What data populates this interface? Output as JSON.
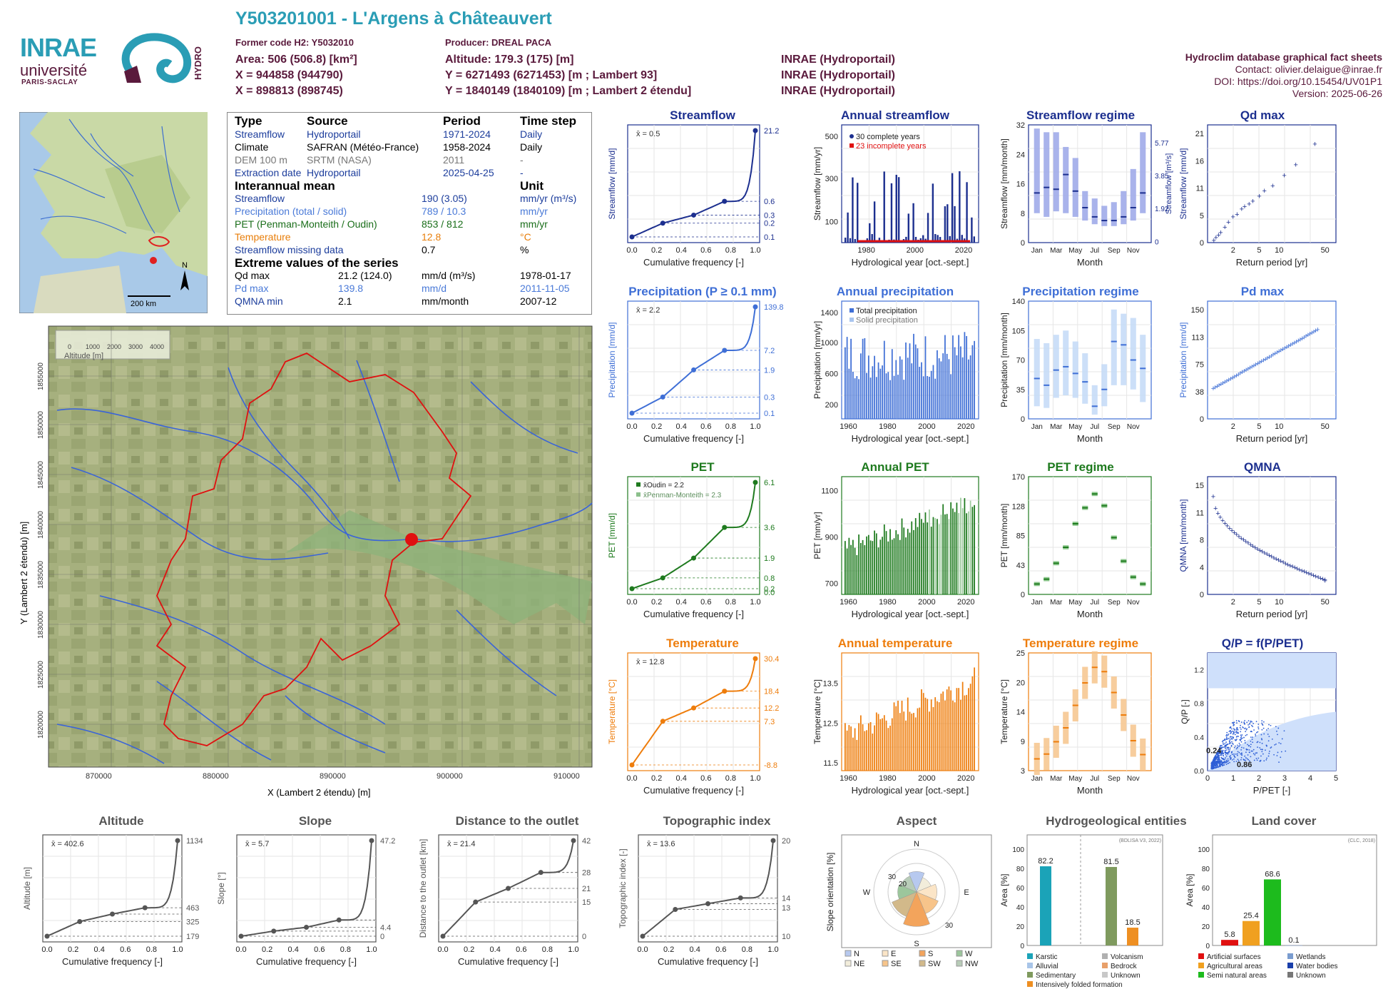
{
  "header": {
    "title": "Y503201001 - L'Argens à Châteauvert",
    "former_code": "Former code H2: Y5032010",
    "producer": "Producer: DREAL PACA",
    "area": "Area: 506 (506.8) [km²]",
    "altitude": "Altitude: 179.3 (175) [m]",
    "x93": "X = 944858 (944790)",
    "y93": "Y = 6271493 (6271453) [m ; Lambert 93]",
    "x2e": "X = 898813 (898745)",
    "y2e": "Y = 1840149 (1840109) [m ; Lambert 2 étendu]",
    "src1": "INRAE (Hydroportail)",
    "src2": "INRAE (Hydroportail)",
    "src3": "INRAE (Hydroportail)",
    "db_title": "Hydroclim database graphical fact sheets",
    "contact": "Contact: olivier.delaigue@inrae.fr",
    "doi": "DOI: https://doi.org/10.15454/UV01P1",
    "version": "Version: 2025-06-26"
  },
  "logos": {
    "inrae": "INRAE",
    "universite": "université",
    "paris_saclay": "PARIS-SACLAY",
    "hydro": "HYDRO"
  },
  "info": {
    "h_type": "Type",
    "h_source": "Source",
    "h_period": "Period",
    "h_step": "Time step",
    "rows": [
      {
        "type": "Streamflow",
        "source": "Hydroportail",
        "period": "1971-2024",
        "step": "Daily"
      },
      {
        "type": "Climate",
        "source": "SAFRAN (Météo-France)",
        "period": "1958-2024",
        "step": "Daily"
      },
      {
        "type": "DEM 100 m",
        "source": "SRTM (NASA)",
        "period": "2011",
        "step": "-"
      },
      {
        "type": "Extraction date",
        "source": "Hydroportail",
        "period": "2025-04-25",
        "step": "-"
      }
    ],
    "h_mean": "Interannual mean",
    "h_unit": "Unit",
    "means": [
      {
        "label": "Streamflow",
        "value": "190 (3.05)",
        "unit": "mm/yr (m³/s)"
      },
      {
        "label": "Precipitation (total / solid)",
        "value": "789 / 10.3",
        "unit": "mm/yr"
      },
      {
        "label": "PET (Penman-Monteith / Oudin)",
        "value": "853 / 812",
        "unit": "mm/yr"
      },
      {
        "label": "Temperature",
        "value": "12.8",
        "unit": "°C"
      },
      {
        "label": "Streamflow missing data",
        "value": "0.7",
        "unit": "%"
      }
    ],
    "h_extreme": "Extreme values of the series",
    "extremes": [
      {
        "label": "Qd max",
        "value": "21.2 (124.0)",
        "unit": "mm/d (m³/s)",
        "date": "1978-01-17"
      },
      {
        "label": "Pd max",
        "value": "139.8",
        "unit": "mm/d",
        "date": "2011-11-05"
      },
      {
        "label": "QMNA min",
        "value": "2.1",
        "unit": "mm/month",
        "date": "2007-12"
      }
    ]
  },
  "map": {
    "scale": "200 km",
    "north": "N",
    "xlabel": "X (Lambert 2 étendu) [m]",
    "ylabel": "Y (Lambert 2 étendu) [m]",
    "xticks": [
      "870000",
      "880000",
      "890000",
      "900000",
      "910000"
    ],
    "yticks": [
      "1855000",
      "1850000",
      "1845000",
      "1840000",
      "1835000",
      "1830000",
      "1825000",
      "1820000"
    ],
    "legend_title": "Altitude [m]",
    "legend_ticks": [
      "0",
      "1000",
      "2000",
      "3000",
      "4000"
    ]
  },
  "panel_titles": {
    "streamflow": "Streamflow",
    "annual_streamflow": "Annual streamflow",
    "streamflow_regime": "Streamflow regime",
    "qdmax": "Qd max",
    "precip": "Precipitation (P ≥ 0.1 mm)",
    "annual_precip": "Annual precipitation",
    "precip_regime": "Precipitation regime",
    "pdmax": "Pd max",
    "pet": "PET",
    "annual_pet": "Annual PET",
    "pet_regime": "PET regime",
    "qmna": "QMNA",
    "temp": "Temperature",
    "annual_temp": "Annual temperature",
    "temp_regime": "Temperature regime",
    "qp": "Q/P = f(P/PET)",
    "altitude": "Altitude",
    "slope": "Slope",
    "distance": "Distance to the outlet",
    "topo": "Topographic index",
    "aspect": "Aspect",
    "hydrogeo": "Hydrogeological entities",
    "landcover": "Land cover"
  },
  "labels": {
    "cumfreq": "Cumulative frequency [-]",
    "hydroyear": "Hydrological year [oct.-sept.]",
    "month": "Month",
    "return": "Return period [yr]",
    "xbar_stream": "x̄ = 0.5",
    "xbar_precip": "x̄ = 2.2",
    "xbar_pet_oudin": "x̄Oudin = 2.2",
    "xbar_pet_pm": "x̄Penman-Monteith = 2.3",
    "xbar_temp": "x̄ = 12.8",
    "xbar_alt": "x̄ = 402.6",
    "xbar_slope": "x̄ = 5.7",
    "xbar_dist": "x̄ = 21.4",
    "xbar_topo": "x̄ = 13.6",
    "complete": "30 complete years",
    "incomplete": "23 incomplete years",
    "total_precip": "Total precipitation",
    "solid_precip": "Solid precipitation",
    "y_stream": "Streamflow [mm/d]",
    "y_annstream": "Streamflow [mm/yr]",
    "y_regstream": "Streamflow [mm/month]",
    "y_regstream_r": "Streamflow [m³/s]",
    "y_qdmax": "Streamflow [mm/d]",
    "y_precip": "Precipitation [mm/d]",
    "y_annprecip": "Precipitation [mm/yr]",
    "y_regprecip": "Precipitation [mm/month]",
    "y_pdmax": "Precipitation [mm/d]",
    "y_pet": "PET [mm/d]",
    "y_annpet": "PET [mm/yr]",
    "y_regpet": "PET [mm/month]",
    "y_qmna": "QMNA [mm/month]",
    "y_temp": "Temperature [°C]",
    "y_anntemp": "Temperature [°C]",
    "y_regtemp": "Temperature [°C]",
    "y_qp": "Q/P [-]",
    "x_qp": "P/PET [-]",
    "qp_a": "0.24",
    "qp_b": "0.86",
    "y_alt": "Altitude [m]",
    "y_slope": "Slope [°]",
    "y_dist": "Distance to the outlet [km]",
    "y_topo": "Topographic index [-]",
    "y_aspect": "Slope orientation [%]",
    "y_area": "Area [%]",
    "bdlisa": "(BDLISA V3, 2022)",
    "clc": "(CLC, 2018)"
  },
  "colors": {
    "blue": "#1c2f8f",
    "lightblue": "#3f6fd6",
    "green": "#1e7a1e",
    "orange": "#ee7d0c",
    "grey": "#555555",
    "maroon": "#5a1a3c",
    "teal": "#2a9db5"
  },
  "chart_data": [
    {
      "id": "streamflow",
      "type": "line",
      "title": "Streamflow",
      "xlabel": "Cumulative frequency [-]",
      "ylabel": "Streamflow [mm/d]",
      "yscale": "log",
      "xlim": [
        0,
        1
      ],
      "x": [
        0,
        0.25,
        0.5,
        0.75,
        1
      ],
      "y": [
        0.1,
        0.2,
        0.3,
        0.6,
        21.2
      ],
      "right_ticks": [
        "21.2",
        "0.6",
        "0.3",
        "0.2",
        "0.1"
      ]
    },
    {
      "id": "annual_streamflow",
      "type": "bar",
      "title": "Annual streamflow",
      "xlabel": "Hydrological year [oct.-sept.]",
      "ylabel": "Streamflow [mm/yr]",
      "ylim": [
        0,
        520
      ],
      "x": [
        1971,
        2024
      ],
      "legend": [
        "30 complete years",
        "23 incomplete years"
      ]
    },
    {
      "id": "streamflow_regime",
      "type": "bar",
      "title": "Streamflow regime",
      "xlabel": "Month",
      "ylabel": "Streamflow [mm/month]",
      "ylim": [
        0,
        32
      ],
      "categories": [
        "Jan",
        "Feb",
        "Mar",
        "Apr",
        "May",
        "Jun",
        "Jul",
        "Aug",
        "Sep",
        "Oct",
        "Nov",
        "Dec"
      ],
      "median": [
        13.5,
        15,
        14.5,
        18.5,
        14,
        9.5,
        7,
        6,
        6,
        7,
        9.5,
        13.5
      ],
      "q_low": [
        8,
        7,
        8.5,
        8,
        7,
        6,
        5,
        4.5,
        4.5,
        5,
        6,
        8
      ],
      "q_high": [
        31,
        30,
        30,
        26,
        23,
        14,
        12,
        10,
        11,
        14,
        20,
        30
      ],
      "right_ticks": [
        "5.77",
        "3.85",
        "1.92",
        "0"
      ]
    },
    {
      "id": "qdmax",
      "type": "scatter",
      "title": "Qd max",
      "xlabel": "Return period [yr]",
      "ylabel": "Streamflow [mm/d]",
      "ylim": [
        0,
        21
      ],
      "x": [
        1.02,
        1.1,
        1.2,
        1.3,
        1.5,
        1.7,
        2,
        2.3,
        2.7,
        3,
        3.5,
        4,
        5,
        6,
        8,
        12,
        18,
        35
      ],
      "y": [
        0.5,
        1,
        1.5,
        2,
        3,
        4,
        5,
        5.5,
        6.5,
        7,
        7.5,
        8,
        9,
        10,
        11,
        13,
        15,
        19
      ]
    },
    {
      "id": "precip",
      "type": "line",
      "title": "Precipitation (P ≥ 0.1 mm)",
      "xlabel": "Cumulative frequency [-]",
      "ylabel": "Precipitation [mm/d]",
      "yscale": "log",
      "x": [
        0,
        0.25,
        0.5,
        0.75,
        1
      ],
      "y": [
        0.1,
        0.3,
        1.9,
        7.2,
        139.8
      ],
      "right_ticks": [
        "139.8",
        "7.2",
        "1.9",
        "0.3",
        "0.1"
      ]
    },
    {
      "id": "annual_precip",
      "type": "bar",
      "title": "Annual precipitation",
      "xlabel": "Hydrological year [oct.-sept.]",
      "ylabel": "Precipitation [mm/yr]",
      "ylim": [
        0,
        1450
      ],
      "x": [
        1958,
        2024
      ],
      "legend": [
        "Total precipitation",
        "Solid precipitation"
      ]
    },
    {
      "id": "precip_regime",
      "type": "bar",
      "title": "Precipitation regime",
      "xlabel": "Month",
      "ylabel": "Precipitation [mm/month]",
      "ylim": [
        0,
        140
      ],
      "categories": [
        "Jan",
        "Feb",
        "Mar",
        "Apr",
        "May",
        "Jun",
        "Jul",
        "Aug",
        "Sep",
        "Oct",
        "Nov",
        "Dec"
      ],
      "median": [
        48,
        40,
        58,
        62,
        54,
        44,
        15,
        35,
        92,
        88,
        70,
        60
      ],
      "q_low": [
        15,
        13,
        25,
        28,
        25,
        18,
        5,
        15,
        40,
        40,
        35,
        20
      ],
      "q_high": [
        95,
        90,
        100,
        105,
        92,
        78,
        40,
        65,
        130,
        125,
        120,
        100
      ]
    },
    {
      "id": "pdmax",
      "type": "scatter",
      "title": "Pd max",
      "xlabel": "Return period [yr]",
      "ylabel": "Precipitation [mm/d]",
      "ylim": [
        0,
        150
      ],
      "x_range": [
        1,
        50
      ],
      "y_range": [
        40,
        140
      ]
    },
    {
      "id": "pet",
      "type": "line",
      "title": "PET",
      "xlabel": "Cumulative frequency [-]",
      "ylabel": "PET [mm/d]",
      "x": [
        0,
        0.25,
        0.5,
        0.75,
        1
      ],
      "y": [
        0.2,
        0.8,
        1.9,
        3.6,
        6.1
      ],
      "right_ticks": [
        "6.1",
        "3.6",
        "1.9",
        "0.8",
        "0.2",
        "0.0"
      ],
      "legend": [
        "x̄Oudin = 2.2",
        "x̄Penman-Monteith = 2.3"
      ]
    },
    {
      "id": "annual_pet",
      "type": "bar",
      "title": "Annual PET",
      "xlabel": "Hydrological year [oct.-sept.]",
      "ylabel": "PET [mm/yr]",
      "ylim": [
        650,
        1120
      ],
      "x": [
        1958,
        2024
      ]
    },
    {
      "id": "pet_regime",
      "type": "bar",
      "title": "PET regime",
      "xlabel": "Month",
      "ylabel": "PET [mm/month]",
      "ylim": [
        0,
        170
      ],
      "categories": [
        "Jan",
        "Feb",
        "Mar",
        "Apr",
        "May",
        "Jun",
        "Jul",
        "Aug",
        "Sep",
        "Oct",
        "Nov",
        "Dec"
      ],
      "median": [
        15,
        22,
        45,
        68,
        102,
        125,
        145,
        128,
        82,
        48,
        25,
        15
      ]
    },
    {
      "id": "qmna",
      "type": "scatter",
      "title": "QMNA",
      "xlabel": "Return period [yr]",
      "ylabel": "QMNA [mm/month]",
      "ylim": [
        0,
        15
      ],
      "x_range": [
        1,
        50
      ],
      "y_range": [
        13.5,
        2.1
      ]
    },
    {
      "id": "temp",
      "type": "line",
      "title": "Temperature",
      "xlabel": "Cumulative frequency [-]",
      "ylabel": "Temperature [°C]",
      "x": [
        0,
        0.25,
        0.5,
        0.75,
        1
      ],
      "y": [
        -8.8,
        7.3,
        12.2,
        18.4,
        30.4
      ],
      "right_ticks": [
        "30.4",
        "18.4",
        "12.2",
        "7.3",
        "-8.8"
      ]
    },
    {
      "id": "annual_temp",
      "type": "bar",
      "title": "Annual temperature",
      "xlabel": "Hydrological year [oct.-sept.]",
      "ylabel": "Temperature [°C]",
      "ylim": [
        11.3,
        14.1
      ],
      "x": [
        1958,
        2024
      ]
    },
    {
      "id": "temp_regime",
      "type": "bar",
      "title": "Temperature regime",
      "xlabel": "Month",
      "ylabel": "Temperature [°C]",
      "ylim": [
        3,
        25
      ],
      "categories": [
        "Jan",
        "Feb",
        "Mar",
        "Apr",
        "May",
        "Jun",
        "Jul",
        "Aug",
        "Sep",
        "Oct",
        "Nov",
        "Dec"
      ],
      "median": [
        5.2,
        6.1,
        8.4,
        11.0,
        15.2,
        19.4,
        22.3,
        21.5,
        17.6,
        13.4,
        8.6,
        6.0
      ]
    },
    {
      "id": "qp",
      "type": "scatter",
      "title": "Q/P = f(P/PET)",
      "xlabel": "P/PET [-]",
      "ylabel": "Q/P [-]",
      "xlim": [
        0,
        5
      ],
      "ylim": [
        0,
        1.4
      ],
      "annotations": [
        "0.24",
        "0.86"
      ]
    },
    {
      "id": "altitude",
      "type": "line",
      "title": "Altitude",
      "xlabel": "Cumulative frequency [-]",
      "ylabel": "Altitude [m]",
      "x": [
        0,
        0.25,
        0.5,
        0.75,
        1
      ],
      "y": [
        179,
        325,
        400,
        463,
        1134
      ],
      "right_ticks": [
        "1134",
        "463",
        "325",
        "179"
      ]
    },
    {
      "id": "slope",
      "type": "line",
      "title": "Slope",
      "xlabel": "Cumulative frequency [-]",
      "ylabel": "Slope [°]",
      "x": [
        0,
        0.25,
        0.5,
        0.75,
        1
      ],
      "y": [
        0,
        2.5,
        4.4,
        8,
        47.2
      ],
      "right_ticks": [
        "47.2",
        "4.4",
        "0"
      ]
    },
    {
      "id": "distance",
      "type": "line",
      "title": "Distance to the outlet",
      "xlabel": "Cumulative frequency [-]",
      "ylabel": "Distance to the outlet [km]",
      "x": [
        0,
        0.25,
        0.5,
        0.75,
        1
      ],
      "y": [
        0,
        15,
        21,
        28,
        42
      ],
      "right_ticks": [
        "42",
        "28",
        "21",
        "15",
        "0"
      ]
    },
    {
      "id": "topo",
      "type": "line",
      "title": "Topographic index",
      "xlabel": "Cumulative frequency [-]",
      "ylabel": "Topographic index [-]",
      "x": [
        0,
        0.25,
        0.5,
        0.75,
        1
      ],
      "y": [
        10,
        12.8,
        13.4,
        14,
        20
      ],
      "right_ticks": [
        "20",
        "14",
        "13",
        "10"
      ]
    },
    {
      "id": "aspect",
      "type": "pie",
      "title": "Aspect",
      "ylabel": "Slope orientation [%]",
      "categories": [
        "N",
        "NE",
        "E",
        "SE",
        "S",
        "SW",
        "W",
        "NW"
      ],
      "values": [
        13,
        10,
        13,
        15,
        22,
        17,
        12,
        11
      ],
      "legend": [
        "N",
        "NE",
        "E",
        "SE",
        "S",
        "SW",
        "W",
        "NW"
      ],
      "ring_ticks": [
        "10",
        "20",
        "30"
      ]
    },
    {
      "id": "hydrogeo",
      "type": "bar",
      "title": "Hydrogeological entities",
      "ylabel": "Area [%]",
      "ylim": [
        0,
        100
      ],
      "categories": [
        "Karstic",
        "Sedimentary",
        "Intensively folded formation"
      ],
      "values": [
        82.2,
        81.5,
        18.5
      ],
      "legend": [
        "Karstic",
        "Alluvial",
        "Sedimentary",
        "Intensively folded formation",
        "Volcanism",
        "Bedrock",
        "Unknown"
      ]
    },
    {
      "id": "landcover",
      "type": "bar",
      "title": "Land cover",
      "ylabel": "Area [%]",
      "ylim": [
        0,
        100
      ],
      "categories": [
        "Artificial surfaces",
        "Agricultural areas",
        "Semi natural areas",
        "Wetlands",
        "Water bodies",
        "Unknown"
      ],
      "values": [
        5.8,
        25.4,
        68.6,
        0.1,
        0,
        0
      ],
      "legend": [
        "Artificial surfaces",
        "Agricultural areas",
        "Semi natural areas",
        "Wetlands",
        "Water bodies",
        "Unknown"
      ]
    }
  ]
}
